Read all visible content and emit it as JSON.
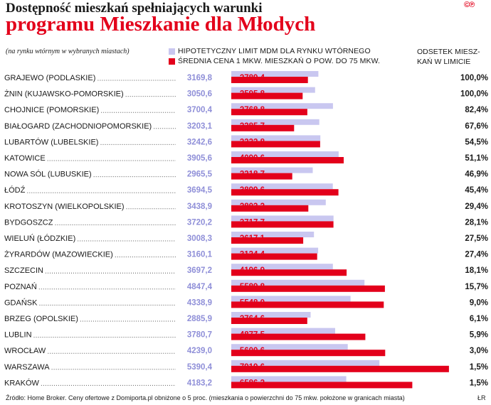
{
  "header": {
    "title_line1": "Dostępność mieszkań spełniających warunki",
    "title_line2": "programu Mieszkanie dla Młodych",
    "subtitle": "(na rynku wtórnym w wybranych miastach)",
    "logo": "©℗"
  },
  "legend": {
    "limit_label": "HIPOTETYCZNY LIMIT MDM DLA RYNKU WTÓRNEGO",
    "price_label": "ŚREDNIA CENA 1 MKW. MIESZKAŃ O POW. DO 75 MKW.",
    "share_header": "ODSETEK MIESZ-KAŃ W LIMICIE"
  },
  "colors": {
    "limit": "#c9c7f0",
    "limit_text": "#8f8fd8",
    "price": "#e3001b",
    "price_text": "#e3001b"
  },
  "chart_data": {
    "type": "bar",
    "orientation": "horizontal",
    "categories": [
      "GRAJEWO (PODLASKIE)",
      "ŻNIN (KUJAWSKO-POMORSKIE)",
      "CHOJNICE (POMORSKIE)",
      "BIAŁOGARD (ZACHODNIOPOMORSKIE)",
      "LUBARTÓW (LUBELSKIE)",
      "KATOWICE",
      "NOWA SÓL (LUBUSKIE)",
      "ŁÓDŹ",
      "KROTOSZYN (WIELKOPOLSKIE)",
      "BYDGOSZCZ",
      "WIELUŃ (ŁÓDZKIE)",
      "ŻYRARDÓW (MAZOWIECKIE)",
      "SZCZECIN",
      "POZNAŃ",
      "GDAŃSK",
      "BRZEG (OPOLSKIE)",
      "LUBLIN",
      "WROCŁAW",
      "WARSZAWA",
      "KRAKÓW"
    ],
    "series": [
      {
        "name": "HIPOTETYCZNY LIMIT MDM DLA RYNKU WTÓRNEGO",
        "values": [
          3169.8,
          3050.6,
          3700.4,
          3203.1,
          3242.6,
          3905.6,
          2965.5,
          3694.5,
          3438.9,
          3720.2,
          3008.3,
          3160.1,
          3697.2,
          4847.4,
          4338.9,
          2885.9,
          3780.7,
          4239.0,
          5390.4,
          4183.2
        ]
      },
      {
        "name": "ŚREDNIA CENA 1 MKW. MIESZKAŃ O POW. DO 75 MKW.",
        "values": [
          2789.4,
          2595.8,
          2768.8,
          2285.7,
          3232.8,
          4090.6,
          2218.7,
          3899.6,
          2803.2,
          3717.7,
          2617.1,
          3124.4,
          4196.9,
          5589.8,
          5548.0,
          2764.6,
          4877.5,
          5600.6,
          7919.6,
          6586.2
        ]
      }
    ],
    "limit_labels": [
      "3169,8",
      "3050,6",
      "3700,4",
      "3203,1",
      "3242,6",
      "3905,6",
      "2965,5",
      "3694,5",
      "3438,9",
      "3720,2",
      "3008,3",
      "3160,1",
      "3697,2",
      "4847,4",
      "4338,9",
      "2885,9",
      "3780,7",
      "4239,0",
      "5390,4",
      "4183,2"
    ],
    "price_labels": [
      "2789,4",
      "2595,8",
      "2768,8",
      "2285,7",
      "3232,8",
      "4090,6",
      "2218,7",
      "3899,6",
      "2803,2",
      "3717,7",
      "2617,1",
      "3124,4",
      "4196,9",
      "5589,8",
      "5548,0",
      "2764,6",
      "4877,5",
      "5600,6",
      "7919,6",
      "6586,2"
    ],
    "share_values": [
      100.0,
      100.0,
      82.4,
      67.6,
      54.5,
      51.1,
      46.9,
      45.4,
      29.4,
      28.1,
      27.5,
      27.4,
      18.1,
      15.7,
      9.0,
      6.1,
      5.9,
      3.0,
      1.5,
      1.5
    ],
    "share_labels": [
      "100,0%",
      "100,0%",
      "82,4%",
      "67,6%",
      "54,5%",
      "51,1%",
      "46,9%",
      "45,4%",
      "29,4%",
      "28,1%",
      "27,5%",
      "27,4%",
      "18,1%",
      "15,7%",
      "9,0%",
      "6,1%",
      "5,9%",
      "3,0%",
      "1,5%",
      "1,5%"
    ],
    "xlim": [
      0,
      8000
    ],
    "grid": false,
    "legend_position": "top"
  },
  "footer": {
    "source": "Źródło: Home Broker. Ceny ofertowe z Domiporta.pl obniżone o 5 proc.  (mieszkania o powierzchni do 75 mkw. położone w granicach miasta)",
    "initials": "ŁR"
  }
}
